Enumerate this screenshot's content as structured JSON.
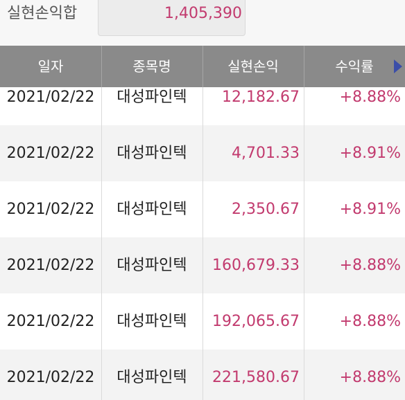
{
  "summary": {
    "label": "실현손익합",
    "value": "1,405,390"
  },
  "table": {
    "columns": [
      "일자",
      "종목명",
      "실현손익",
      "수익률"
    ],
    "rows": [
      {
        "date": "2021/02/22",
        "name": "대성파인텍",
        "pnl": "12,182.67",
        "rate": "+8.88%"
      },
      {
        "date": "2021/02/22",
        "name": "대성파인텍",
        "pnl": "4,701.33",
        "rate": "+8.91%"
      },
      {
        "date": "2021/02/22",
        "name": "대성파인텍",
        "pnl": "2,350.67",
        "rate": "+8.91%"
      },
      {
        "date": "2021/02/22",
        "name": "대성파인텍",
        "pnl": "160,679.33",
        "rate": "+8.88%"
      },
      {
        "date": "2021/02/22",
        "name": "대성파인텍",
        "pnl": "192,065.67",
        "rate": "+8.88%"
      },
      {
        "date": "2021/02/22",
        "name": "대성파인텍",
        "pnl": "221,580.67",
        "rate": "+8.88%"
      }
    ]
  },
  "icons": {
    "scroll_right": "triangle-right-icon"
  },
  "colors": {
    "header_bg": "#8a8a8a",
    "positive": "#c23a6e",
    "arrow": "#3b4ea8"
  }
}
